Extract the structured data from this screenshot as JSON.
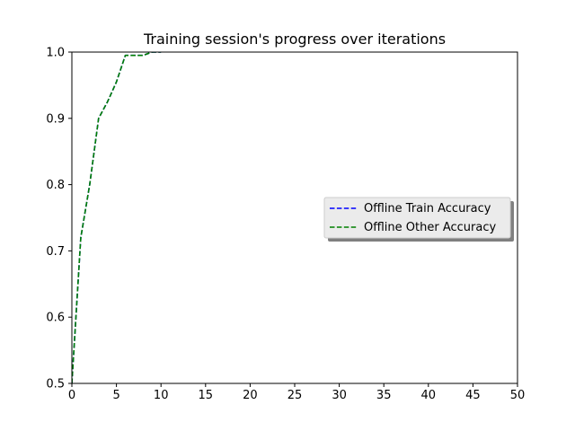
{
  "chart_data": {
    "type": "line",
    "title": "Training session's progress over iterations",
    "xlabel": "",
    "ylabel": "",
    "xlim": [
      0,
      50
    ],
    "ylim": [
      0.5,
      1.0
    ],
    "xticks": [
      0,
      5,
      10,
      15,
      20,
      25,
      30,
      35,
      40,
      45,
      50
    ],
    "yticks": [
      0.5,
      0.6,
      0.7,
      0.8,
      0.9,
      1.0
    ],
    "xtick_labels": [
      "0",
      "5",
      "10",
      "15",
      "20",
      "25",
      "30",
      "35",
      "40",
      "45",
      "50"
    ],
    "ytick_labels": [
      "0.5",
      "0.6",
      "0.7",
      "0.8",
      "0.9",
      "1.0"
    ],
    "grid": false,
    "legend": "center-right",
    "series": [
      {
        "name": "Offline Train Accuracy",
        "color": "#0000ff",
        "linestyle": "dashed",
        "x": [
          0,
          1,
          2,
          3,
          4,
          5,
          6,
          7,
          8,
          9,
          10
        ],
        "y": [
          0.5,
          0.72,
          0.8,
          0.9,
          0.925,
          0.955,
          0.995,
          0.995,
          0.995,
          1.0,
          1.0
        ]
      },
      {
        "name": "Offline Other Accuracy",
        "color": "#008000",
        "linestyle": "dashed",
        "x": [
          0,
          1,
          2,
          3,
          4,
          5,
          6,
          7,
          8,
          9,
          10
        ],
        "y": [
          0.5,
          0.72,
          0.8,
          0.9,
          0.925,
          0.955,
          0.995,
          0.995,
          0.995,
          1.0,
          1.0
        ]
      }
    ]
  }
}
